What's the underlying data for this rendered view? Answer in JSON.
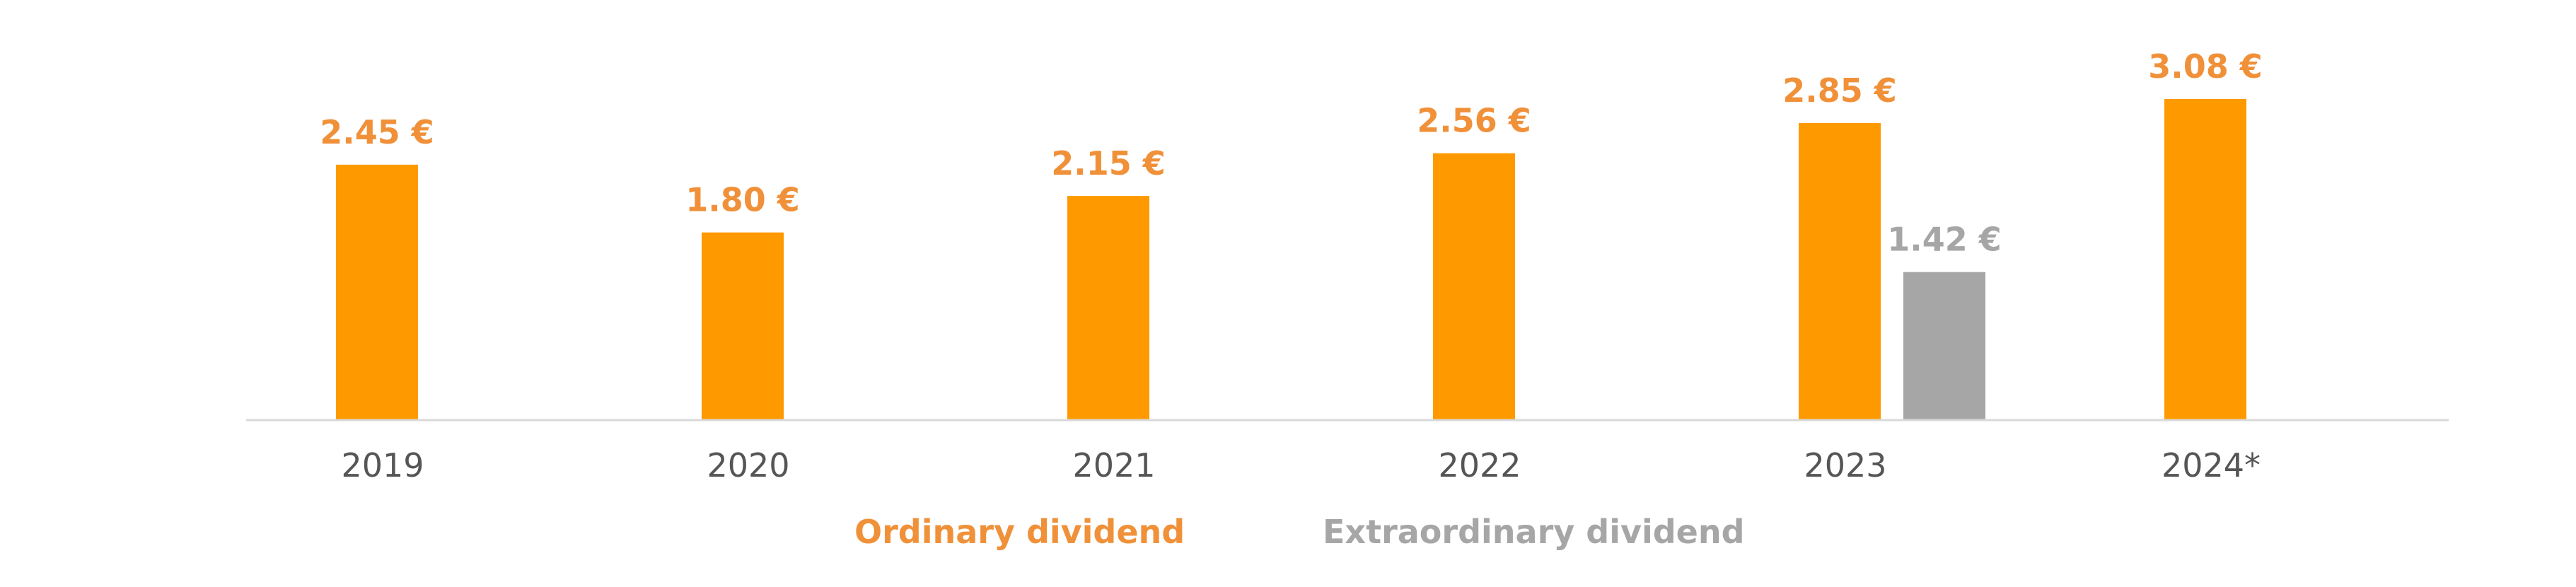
{
  "chart_data": {
    "type": "bar",
    "categories": [
      "2019",
      "2020",
      "2021",
      "2022",
      "2023",
      "2024*"
    ],
    "series": [
      {
        "name": "Ordinary dividend",
        "color": "#FF9900",
        "label_color": "#F0913A",
        "values": [
          2.45,
          1.8,
          2.15,
          2.56,
          2.85,
          3.08
        ],
        "labels": [
          "2.45 €",
          "1.80 €",
          "2.15 €",
          "2.56 €",
          "2.85 €",
          "3.08 €"
        ]
      },
      {
        "name": "Extraordinary dividend",
        "color": "#A6A6A6",
        "label_color": "#A6A6A6",
        "values": [
          null,
          null,
          null,
          null,
          1.42,
          null
        ],
        "labels": [
          "",
          "",
          "",
          "",
          "1.42 €",
          ""
        ]
      }
    ],
    "title": "",
    "xlabel": "",
    "ylabel": "",
    "ylim": [
      0,
      3.25
    ],
    "grid": false,
    "legend_position": "bottom"
  }
}
